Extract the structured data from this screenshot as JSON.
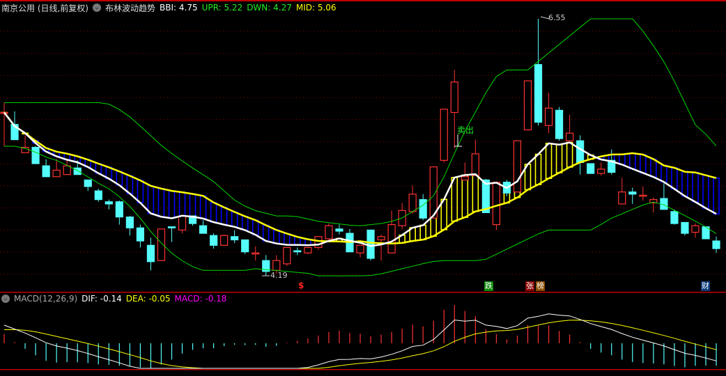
{
  "header": {
    "stock": "南京公用 (日线,前复权)",
    "indicator": "布林波动趋势",
    "bbi": "BBI: 4.75",
    "upr": "UPR: 5.22",
    "dwn": "DWN: 4.27",
    "mid": "MID: 5.06"
  },
  "macd_header": {
    "name": "MACD(12,26,9)",
    "dif": "DIF: -0.14",
    "dea": "DEA: -0.05",
    "macd": "MACD: -0.18"
  },
  "annotations": {
    "high_label": "6.55",
    "low_label": "4.19",
    "sell_label": "卖出",
    "dollar_marker": "$",
    "event_markers": [
      {
        "text": "跌",
        "color": "#0a8a0a"
      },
      {
        "text": "张",
        "color": "#8a0000"
      },
      {
        "text": "榜",
        "color": "#8a4a00"
      },
      {
        "text": "财",
        "color": "#0a3a7a"
      }
    ]
  },
  "colors": {
    "up": "#ff3232",
    "down": "#54fcfc",
    "bbi": "#ffffff",
    "mid": "#ffff00",
    "band": "#00d800",
    "bar_above": "#ffff00",
    "bar_below": "#0000ff",
    "grid": "#8a0000",
    "border": "#c00000",
    "dea": "#ffff00",
    "dif": "#ffffff"
  },
  "chart_data": {
    "type": "candlestick",
    "price_range": [
      4.19,
      6.55
    ],
    "candles": [
      [
        5.69,
        5.69,
        5.78,
        5.38
      ],
      [
        5.58,
        5.44,
        5.7,
        5.44
      ],
      [
        5.32,
        5.37,
        5.48,
        5.32
      ],
      [
        5.37,
        5.22,
        5.38,
        5.22
      ],
      [
        5.2,
        5.1,
        5.26,
        5.1
      ],
      [
        5.1,
        5.16,
        5.26,
        5.1
      ],
      [
        5.12,
        5.2,
        5.25,
        5.12
      ],
      [
        5.18,
        5.12,
        5.25,
        5.12
      ],
      [
        5.07,
        5.01,
        5.07,
        4.97
      ],
      [
        4.97,
        4.89,
        4.99,
        4.87
      ],
      [
        4.87,
        4.85,
        4.89,
        4.8
      ],
      [
        4.87,
        4.73,
        4.88,
        4.66
      ],
      [
        4.73,
        4.63,
        4.74,
        4.56
      ],
      [
        4.63,
        4.51,
        4.66,
        4.45
      ],
      [
        4.47,
        4.32,
        4.54,
        4.24
      ],
      [
        4.33,
        4.62,
        4.62,
        4.33
      ],
      [
        4.64,
        4.63,
        4.64,
        4.5
      ],
      [
        4.61,
        4.74,
        4.74,
        4.58
      ],
      [
        4.74,
        4.67,
        4.74,
        4.65
      ],
      [
        4.65,
        4.58,
        4.7,
        4.58
      ],
      [
        4.56,
        4.47,
        4.58,
        4.44
      ],
      [
        4.47,
        4.56,
        4.57,
        4.47
      ],
      [
        4.55,
        4.52,
        4.61,
        4.49
      ],
      [
        4.52,
        4.41,
        4.52,
        4.39
      ],
      [
        4.39,
        4.4,
        4.46,
        4.33
      ],
      [
        4.33,
        4.23,
        4.38,
        4.19
      ],
      [
        4.24,
        4.33,
        4.38,
        4.21
      ],
      [
        4.3,
        4.45,
        4.45,
        4.28
      ],
      [
        4.42,
        4.41,
        4.45,
        4.38
      ],
      [
        4.4,
        4.45,
        4.45,
        4.39
      ],
      [
        4.45,
        4.55,
        4.55,
        4.43
      ],
      [
        4.53,
        4.65,
        4.67,
        4.52
      ],
      [
        4.62,
        4.6,
        4.66,
        4.57
      ],
      [
        4.58,
        4.41,
        4.62,
        4.41
      ],
      [
        4.4,
        4.47,
        4.47,
        4.36
      ],
      [
        4.61,
        4.35,
        4.61,
        4.33
      ],
      [
        4.52,
        4.55,
        4.57,
        4.33
      ],
      [
        4.4,
        4.66,
        4.79,
        4.4
      ],
      [
        4.65,
        4.79,
        4.86,
        4.62
      ],
      [
        4.78,
        4.94,
        5.02,
        4.76
      ],
      [
        4.89,
        4.72,
        4.94,
        4.7
      ],
      [
        4.72,
        5.19,
        5.19,
        4.72
      ],
      [
        5.25,
        5.72,
        5.72,
        5.23
      ],
      [
        5.69,
        5.97,
        6.08,
        5.36
      ],
      [
        5.07,
        5.1,
        5.23,
        5.07
      ],
      [
        5.11,
        5.31,
        5.44,
        5.11
      ],
      [
        5.07,
        4.77,
        5.08,
        4.77
      ],
      [
        4.66,
        5.05,
        5.05,
        4.61
      ],
      [
        5.05,
        4.95,
        5.07,
        4.92
      ],
      [
        4.96,
        5.43,
        5.43,
        4.96
      ],
      [
        5.53,
        5.98,
        5.98,
        5.53
      ],
      [
        6.13,
        5.6,
        6.55,
        5.57
      ],
      [
        5.57,
        5.73,
        5.87,
        5.5
      ],
      [
        5.71,
        5.45,
        5.74,
        5.43
      ],
      [
        5.43,
        5.5,
        5.67,
        5.43
      ],
      [
        5.43,
        5.23,
        5.48,
        5.12
      ],
      [
        5.22,
        5.13,
        5.22,
        5.13
      ],
      [
        5.13,
        5.17,
        5.23,
        5.11
      ],
      [
        5.25,
        5.14,
        5.35,
        5.12
      ],
      [
        4.85,
        4.96,
        5.09,
        4.85
      ],
      [
        4.96,
        4.94,
        5.0,
        4.85
      ],
      [
        4.93,
        4.93,
        5.01,
        4.88
      ],
      [
        4.86,
        4.89,
        4.91,
        4.77
      ],
      [
        4.9,
        4.8,
        5.04,
        4.8
      ],
      [
        4.78,
        4.67,
        4.8,
        4.66
      ],
      [
        4.68,
        4.58,
        4.68,
        4.56
      ],
      [
        4.59,
        4.65,
        4.67,
        4.54
      ],
      [
        4.64,
        4.53,
        4.64,
        4.53
      ],
      [
        4.51,
        4.44,
        4.55,
        4.4
      ]
    ],
    "candle_fields": [
      "open",
      "close",
      "high",
      "low"
    ]
  }
}
